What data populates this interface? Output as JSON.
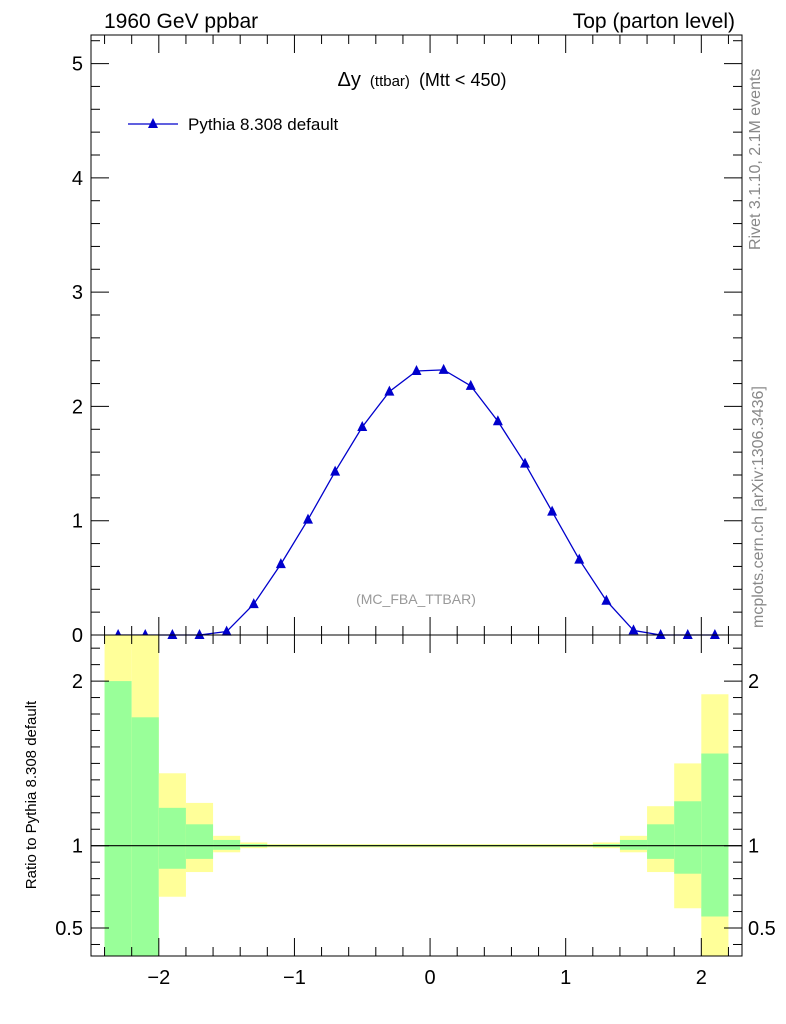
{
  "header": {
    "left": "1960 GeV ppbar",
    "right": "Top (parton level)"
  },
  "side_labels": {
    "rivet": "Rivet 3.1.10,  2.1M events",
    "mcplots": "mcplots.cern.ch [arXiv:1306.3436]"
  },
  "chart_data": [
    {
      "type": "line",
      "title_sym": "Δy",
      "title_small": "(ttbar)",
      "title_rest": "(Mtt < 450)",
      "watermark": "(MC_FBA_TTBAR)",
      "xlim": [
        -2.5,
        2.3
      ],
      "ylim": [
        0,
        5.25
      ],
      "yticks": [
        0,
        1,
        2,
        3,
        4,
        5
      ],
      "ytick_labels": [
        "0",
        "1",
        "2",
        "3",
        "4",
        "5"
      ],
      "series": [
        {
          "name": "Pythia 8.308 default",
          "color": "#0000cc",
          "x": [
            -2.3,
            -2.1,
            -1.9,
            -1.7,
            -1.5,
            -1.3,
            -1.1,
            -0.9,
            -0.7,
            -0.5,
            -0.3,
            -0.1,
            0.1,
            0.3,
            0.5,
            0.7,
            0.9,
            1.1,
            1.3,
            1.5,
            1.7,
            1.9,
            2.1
          ],
          "y": [
            0.0,
            0.0,
            0.0,
            0.0,
            0.03,
            0.27,
            0.62,
            1.01,
            1.43,
            1.82,
            2.13,
            2.31,
            2.32,
            2.18,
            1.87,
            1.5,
            1.08,
            0.66,
            0.3,
            0.04,
            0.0,
            0.0,
            0.0
          ]
        }
      ]
    },
    {
      "type": "bar",
      "ylabel": "Ratio to Pythia 8.308 default",
      "xlim": [
        -2.5,
        2.3
      ],
      "ylim": [
        0.33,
        2.28
      ],
      "xticks": [
        -2,
        -1,
        0,
        1,
        2
      ],
      "xtick_labels": [
        "−2",
        "−1",
        "0",
        "1",
        "2"
      ],
      "yticks": [
        0.5,
        1,
        2
      ],
      "ytick_labels": [
        "0.5",
        "1",
        "2"
      ],
      "reference": 1,
      "band_colors": {
        "outer": "#ffff99",
        "inner": "#99ff99"
      },
      "bins": [
        {
          "lo": -2.4,
          "hi": -2.2,
          "y1lo": 0.33,
          "y1hi": 2.28,
          "y2lo": 0.33,
          "y2hi": 2.0
        },
        {
          "lo": -2.2,
          "hi": -2.0,
          "y1lo": 0.33,
          "y1hi": 2.28,
          "y2lo": 0.33,
          "y2hi": 1.78
        },
        {
          "lo": -2.0,
          "hi": -1.8,
          "y1lo": 0.69,
          "y1hi": 1.44,
          "y2lo": 0.86,
          "y2hi": 1.23
        },
        {
          "lo": -1.8,
          "hi": -1.6,
          "y1lo": 0.84,
          "y1hi": 1.26,
          "y2lo": 0.92,
          "y2hi": 1.13
        },
        {
          "lo": -1.6,
          "hi": -1.4,
          "y1lo": 0.96,
          "y1hi": 1.06,
          "y2lo": 0.975,
          "y2hi": 1.035
        },
        {
          "lo": -1.4,
          "hi": -1.2,
          "y1lo": 0.985,
          "y1hi": 1.02,
          "y2lo": 0.993,
          "y2hi": 1.01
        },
        {
          "lo": -1.2,
          "hi": 1.2,
          "y1lo": 0.99,
          "y1hi": 1.01,
          "y2lo": 0.995,
          "y2hi": 1.005
        },
        {
          "lo": 1.2,
          "hi": 1.4,
          "y1lo": 0.985,
          "y1hi": 1.02,
          "y2lo": 0.993,
          "y2hi": 1.01
        },
        {
          "lo": 1.4,
          "hi": 1.6,
          "y1lo": 0.96,
          "y1hi": 1.06,
          "y2lo": 0.975,
          "y2hi": 1.035
        },
        {
          "lo": 1.6,
          "hi": 1.8,
          "y1lo": 0.84,
          "y1hi": 1.24,
          "y2lo": 0.92,
          "y2hi": 1.13
        },
        {
          "lo": 1.8,
          "hi": 2.0,
          "y1lo": 0.62,
          "y1hi": 1.5,
          "y2lo": 0.83,
          "y2hi": 1.27
        },
        {
          "lo": 2.0,
          "hi": 2.2,
          "y1lo": 0.33,
          "y1hi": 1.92,
          "y2lo": 0.57,
          "y2hi": 1.56
        }
      ]
    }
  ]
}
